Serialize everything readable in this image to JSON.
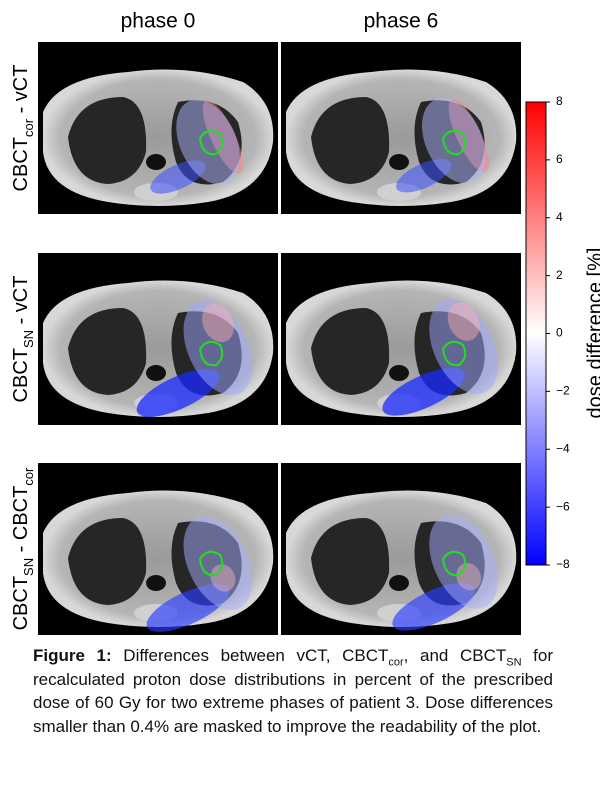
{
  "columns": [
    "phase 0",
    "phase 6"
  ],
  "rows": [
    {
      "label": [
        {
          "text": "CBCT"
        },
        {
          "sub": "cor"
        },
        {
          "text": " - vCT"
        }
      ]
    },
    {
      "label": [
        {
          "text": "CBCT"
        },
        {
          "sub": "SN"
        },
        {
          "text": " - vCT"
        }
      ]
    },
    {
      "label": [
        {
          "text": "CBCT"
        },
        {
          "sub": "SN"
        },
        {
          "text": " - CBCT"
        },
        {
          "sub": "cor"
        }
      ]
    }
  ],
  "colorbar": {
    "label": "dose difference [%]",
    "lim": [
      -8,
      8
    ],
    "ticks": [
      {
        "value": -8,
        "label": "−8"
      },
      {
        "value": -6,
        "label": "−6"
      },
      {
        "value": -4,
        "label": "−4"
      },
      {
        "value": -2,
        "label": "−2"
      },
      0,
      2,
      4,
      6,
      8
    ]
  },
  "caption": [
    {
      "bold": "Figure 1:"
    },
    {
      "text": " Differences between vCT, CBCT"
    },
    {
      "sub": "cor"
    },
    {
      "text": ", and CBCT"
    },
    {
      "sub": "SN"
    },
    {
      "text": " for recalculated proton dose distributions in percent of the prescribed dose of 60 Gy for two extreme phases of patient 3. Dose differences smaller than 0.4% are masked to improve the readability of the plot."
    }
  ]
}
